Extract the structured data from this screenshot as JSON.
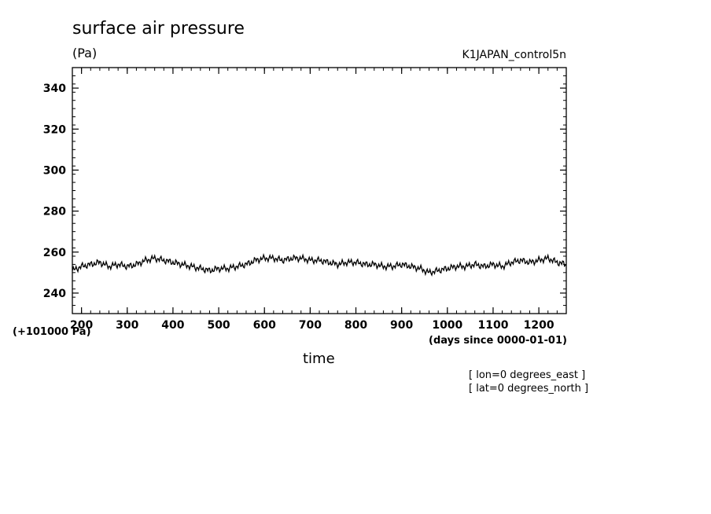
{
  "header": {
    "title": "surface air pressure",
    "units": "(Pa)",
    "dataset": "K1JAPAN_control5n",
    "offset_note": "(+101000 Pa)",
    "x_units": "(days since 0000-01-01)",
    "xlabel": "time",
    "lon_note": "[ lon=0 degrees_east ]",
    "lat_note": "[ lat=0 degrees_north ]"
  },
  "chart_data": {
    "type": "line",
    "title": "surface air pressure",
    "ylabel": "(Pa)",
    "xlabel": "time",
    "xlim": [
      180,
      1260
    ],
    "ylim": [
      230,
      350
    ],
    "x_ticks": [
      200,
      300,
      400,
      500,
      600,
      700,
      800,
      900,
      1000,
      1100,
      1200
    ],
    "y_ticks": [
      240,
      260,
      280,
      300,
      320,
      340
    ],
    "grid": false,
    "series": [
      {
        "x": [
          180,
          200,
          220,
          240,
          260,
          280,
          300,
          320,
          340,
          360,
          380,
          400,
          420,
          440,
          460,
          480,
          500,
          520,
          540,
          560,
          580,
          600,
          620,
          640,
          660,
          680,
          700,
          720,
          740,
          760,
          780,
          800,
          820,
          840,
          860,
          880,
          900,
          920,
          940,
          960,
          980,
          1000,
          1020,
          1040,
          1060,
          1080,
          1100,
          1120,
          1140,
          1160,
          1180,
          1200,
          1220,
          1240,
          1260
        ],
        "values": [
          251,
          253,
          254,
          255,
          253,
          254,
          253,
          254,
          256,
          257,
          256,
          255,
          254,
          253,
          252,
          251,
          252,
          252,
          253,
          254,
          256,
          257,
          257,
          256,
          257,
          257,
          256,
          256,
          255,
          254,
          255,
          255,
          254,
          254,
          253,
          253,
          254,
          253,
          252,
          250,
          251,
          252,
          253,
          253,
          254,
          253,
          254,
          253,
          255,
          256,
          255,
          256,
          257,
          255,
          254
        ]
      }
    ]
  }
}
